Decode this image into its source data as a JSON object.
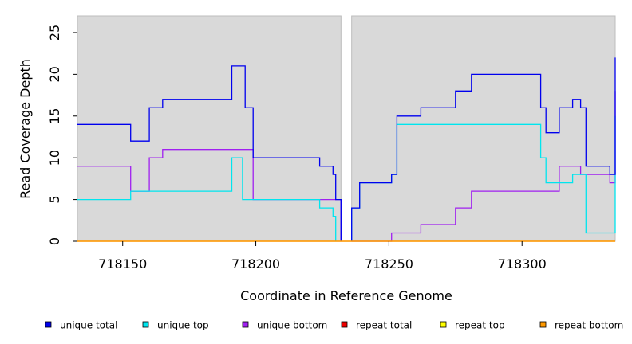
{
  "chart_data": {
    "type": "line",
    "step": true,
    "xlabel": "Coordinate in Reference Genome",
    "ylabel": "Read Coverage Depth",
    "xlim": [
      718133,
      718335
    ],
    "ylim": [
      0,
      27
    ],
    "xticks": [
      718150,
      718200,
      718250,
      718300
    ],
    "yticks": [
      0,
      5,
      10,
      15,
      20,
      25
    ],
    "background_panels": [
      [
        718133,
        718232
      ],
      [
        718236,
        718335
      ]
    ],
    "legend_position": "bottom",
    "series": [
      {
        "name": "unique total",
        "color": "#0000ee",
        "points": [
          [
            718133,
            14
          ],
          [
            718153,
            14
          ],
          [
            718153,
            12
          ],
          [
            718160,
            12
          ],
          [
            718160,
            16
          ],
          [
            718165,
            16
          ],
          [
            718165,
            17
          ],
          [
            718191,
            17
          ],
          [
            718191,
            21
          ],
          [
            718196,
            21
          ],
          [
            718196,
            16
          ],
          [
            718199,
            16
          ],
          [
            718199,
            10
          ],
          [
            718224,
            10
          ],
          [
            718224,
            9
          ],
          [
            718229,
            9
          ],
          [
            718229,
            8
          ],
          [
            718230,
            8
          ],
          [
            718230,
            5
          ],
          [
            718232,
            5
          ],
          [
            718232,
            0
          ]
        ]
      },
      {
        "name": "unique total (right panel)",
        "color": "#0000ee",
        "points": [
          [
            718236,
            0
          ],
          [
            718236,
            4
          ],
          [
            718239,
            4
          ],
          [
            718239,
            7
          ],
          [
            718251,
            7
          ],
          [
            718251,
            8
          ],
          [
            718253,
            8
          ],
          [
            718253,
            15
          ],
          [
            718262,
            15
          ],
          [
            718262,
            16
          ],
          [
            718275,
            16
          ],
          [
            718275,
            18
          ],
          [
            718281,
            18
          ],
          [
            718281,
            20
          ],
          [
            718307,
            20
          ],
          [
            718307,
            16
          ],
          [
            718309,
            16
          ],
          [
            718309,
            13
          ],
          [
            718314,
            13
          ],
          [
            718314,
            16
          ],
          [
            718319,
            16
          ],
          [
            718319,
            17
          ],
          [
            718322,
            17
          ],
          [
            718322,
            16
          ],
          [
            718324,
            16
          ],
          [
            718324,
            9
          ],
          [
            718333,
            9
          ],
          [
            718333,
            8
          ],
          [
            718335,
            8
          ],
          [
            718335,
            22
          ]
        ]
      },
      {
        "name": "unique top",
        "color": "#00e5ee",
        "points": [
          [
            718133,
            5
          ],
          [
            718153,
            5
          ],
          [
            718153,
            6
          ],
          [
            718191,
            6
          ],
          [
            718191,
            10
          ],
          [
            718195,
            10
          ],
          [
            718195,
            5
          ],
          [
            718224,
            5
          ],
          [
            718224,
            4
          ],
          [
            718229,
            4
          ],
          [
            718229,
            3
          ],
          [
            718230,
            3
          ],
          [
            718230,
            0
          ]
        ]
      },
      {
        "name": "unique top (right panel)",
        "color": "#00e5ee",
        "points": [
          [
            718236,
            0
          ],
          [
            718236,
            4
          ],
          [
            718239,
            4
          ],
          [
            718239,
            7
          ],
          [
            718251,
            7
          ],
          [
            718251,
            8
          ],
          [
            718253,
            8
          ],
          [
            718253,
            14
          ],
          [
            718307,
            14
          ],
          [
            718307,
            10
          ],
          [
            718309,
            10
          ],
          [
            718309,
            7
          ],
          [
            718319,
            7
          ],
          [
            718319,
            8
          ],
          [
            718324,
            8
          ],
          [
            718324,
            1
          ],
          [
            718335,
            1
          ],
          [
            718335,
            15
          ]
        ]
      },
      {
        "name": "unique bottom",
        "color": "#a020f0",
        "points": [
          [
            718133,
            9
          ],
          [
            718153,
            9
          ],
          [
            718153,
            6
          ],
          [
            718160,
            6
          ],
          [
            718160,
            10
          ],
          [
            718165,
            10
          ],
          [
            718165,
            11
          ],
          [
            718199,
            11
          ],
          [
            718199,
            5
          ],
          [
            718232,
            5
          ],
          [
            718232,
            0
          ]
        ]
      },
      {
        "name": "unique bottom (right panel)",
        "color": "#a020f0",
        "points": [
          [
            718236,
            0
          ],
          [
            718251,
            0
          ],
          [
            718251,
            1
          ],
          [
            718262,
            1
          ],
          [
            718262,
            2
          ],
          [
            718275,
            2
          ],
          [
            718275,
            4
          ],
          [
            718281,
            4
          ],
          [
            718281,
            6
          ],
          [
            718314,
            6
          ],
          [
            718314,
            9
          ],
          [
            718322,
            9
          ],
          [
            718322,
            8
          ],
          [
            718333,
            8
          ],
          [
            718333,
            7
          ],
          [
            718335,
            7
          ],
          [
            718335,
            18
          ]
        ]
      },
      {
        "name": "repeat total",
        "color": "#ee0000",
        "points": [
          [
            718133,
            0
          ],
          [
            718335,
            0
          ]
        ]
      },
      {
        "name": "repeat top",
        "color": "#ffff00",
        "points": [
          [
            718133,
            0
          ],
          [
            718335,
            0
          ]
        ]
      },
      {
        "name": "repeat bottom",
        "color": "#ff9900",
        "points": [
          [
            718133,
            0
          ],
          [
            718335,
            0
          ]
        ]
      }
    ]
  },
  "legend": [
    {
      "label": "unique total",
      "color": "#0000ee"
    },
    {
      "label": "unique top",
      "color": "#00e5ee"
    },
    {
      "label": "unique bottom",
      "color": "#a020f0"
    },
    {
      "label": "repeat total",
      "color": "#ee0000"
    },
    {
      "label": "repeat top",
      "color": "#ffff00"
    },
    {
      "label": "repeat bottom",
      "color": "#ff9900"
    }
  ]
}
